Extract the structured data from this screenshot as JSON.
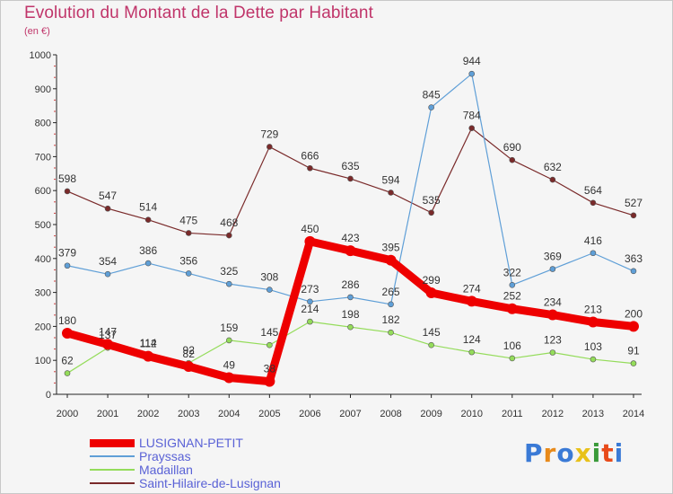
{
  "header": {
    "title": "Evolution du Montant de la Dette par Habitant",
    "subtitle": "(en €)"
  },
  "brand": {
    "text": "Proxiti",
    "colors": [
      "#3a7ad6",
      "#e88a1a",
      "#3a7ad6",
      "#e8c11a",
      "#3a9a3a",
      "#e84a1a",
      "#3a7ad6"
    ]
  },
  "chart_data": {
    "type": "line",
    "x": [
      2000,
      2001,
      2002,
      2003,
      2004,
      2005,
      2006,
      2007,
      2008,
      2009,
      2010,
      2011,
      2012,
      2013,
      2014
    ],
    "ylim": [
      0,
      1000
    ],
    "yticks": [
      0,
      100,
      200,
      300,
      400,
      500,
      600,
      700,
      800,
      900,
      1000
    ],
    "grid": false,
    "legend_position": "bottom-left",
    "series": [
      {
        "name": "LUSIGNAN-PETIT",
        "color": "#ee0000",
        "values": [
          180,
          147,
          112,
          82,
          49,
          38,
          450,
          423,
          395,
          299,
          274,
          252,
          234,
          213,
          200
        ]
      },
      {
        "name": "Prayssas",
        "color": "#5f9fd7",
        "values": [
          379,
          354,
          386,
          356,
          325,
          308,
          273,
          286,
          265,
          845,
          944,
          322,
          369,
          416,
          363
        ]
      },
      {
        "name": "Madaillan",
        "color": "#94dc5a",
        "values": [
          62,
          137,
          114,
          92,
          159,
          145,
          214,
          198,
          182,
          145,
          124,
          106,
          123,
          103,
          91
        ]
      },
      {
        "name": "Saint-Hilaire-de-Lusignan",
        "color": "#7a2a2a",
        "values": [
          598,
          547,
          514,
          475,
          468,
          729,
          666,
          635,
          594,
          535,
          784,
          690,
          632,
          564,
          527
        ]
      }
    ]
  }
}
